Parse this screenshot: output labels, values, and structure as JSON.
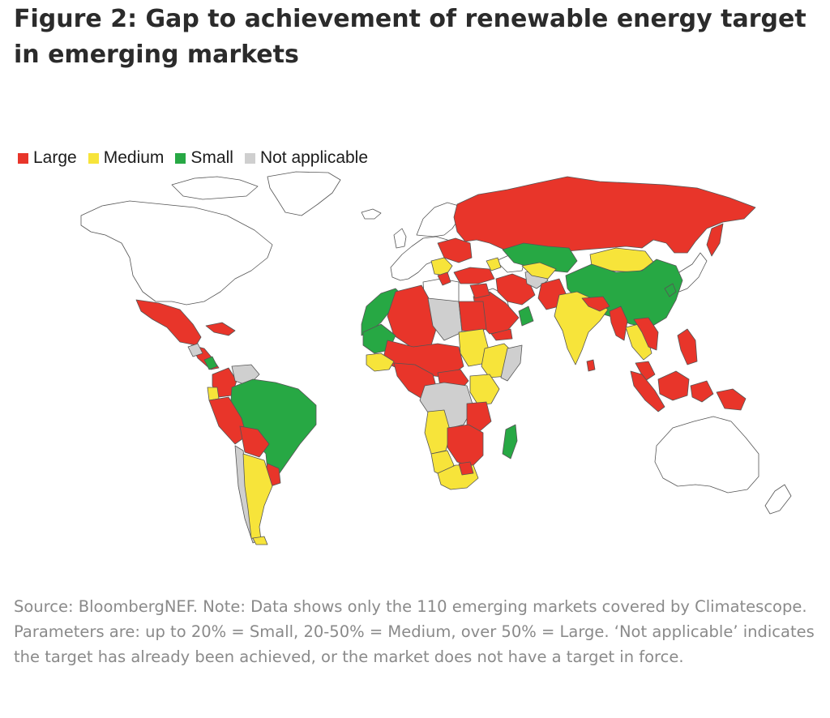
{
  "figure": {
    "title": "Figure 2: Gap to achievement of renewable energy target in emerging markets",
    "source_note": "Source: BloombergNEF. Note: Data shows only the 110 emerging markets covered by Climatescope. Parameters are: up to 20% = Small, 20-50% = Medium, over 50% = Large. ‘Not applicable’ indicates the target has already been achieved, or the market does not have a target in force."
  },
  "legend": [
    {
      "key": "large",
      "label": "Large",
      "color": "#e8352a"
    },
    {
      "key": "medium",
      "label": "Medium",
      "color": "#f7e43a"
    },
    {
      "key": "small",
      "label": "Small",
      "color": "#27a844"
    },
    {
      "key": "na",
      "label": "Not applicable",
      "color": "#cfcfcf"
    }
  ],
  "colors": {
    "large": "#e8352a",
    "medium": "#f7e43a",
    "small": "#27a844",
    "na": "#cfcfcf",
    "not_covered": "#ffffff",
    "border": "#555555"
  }
}
